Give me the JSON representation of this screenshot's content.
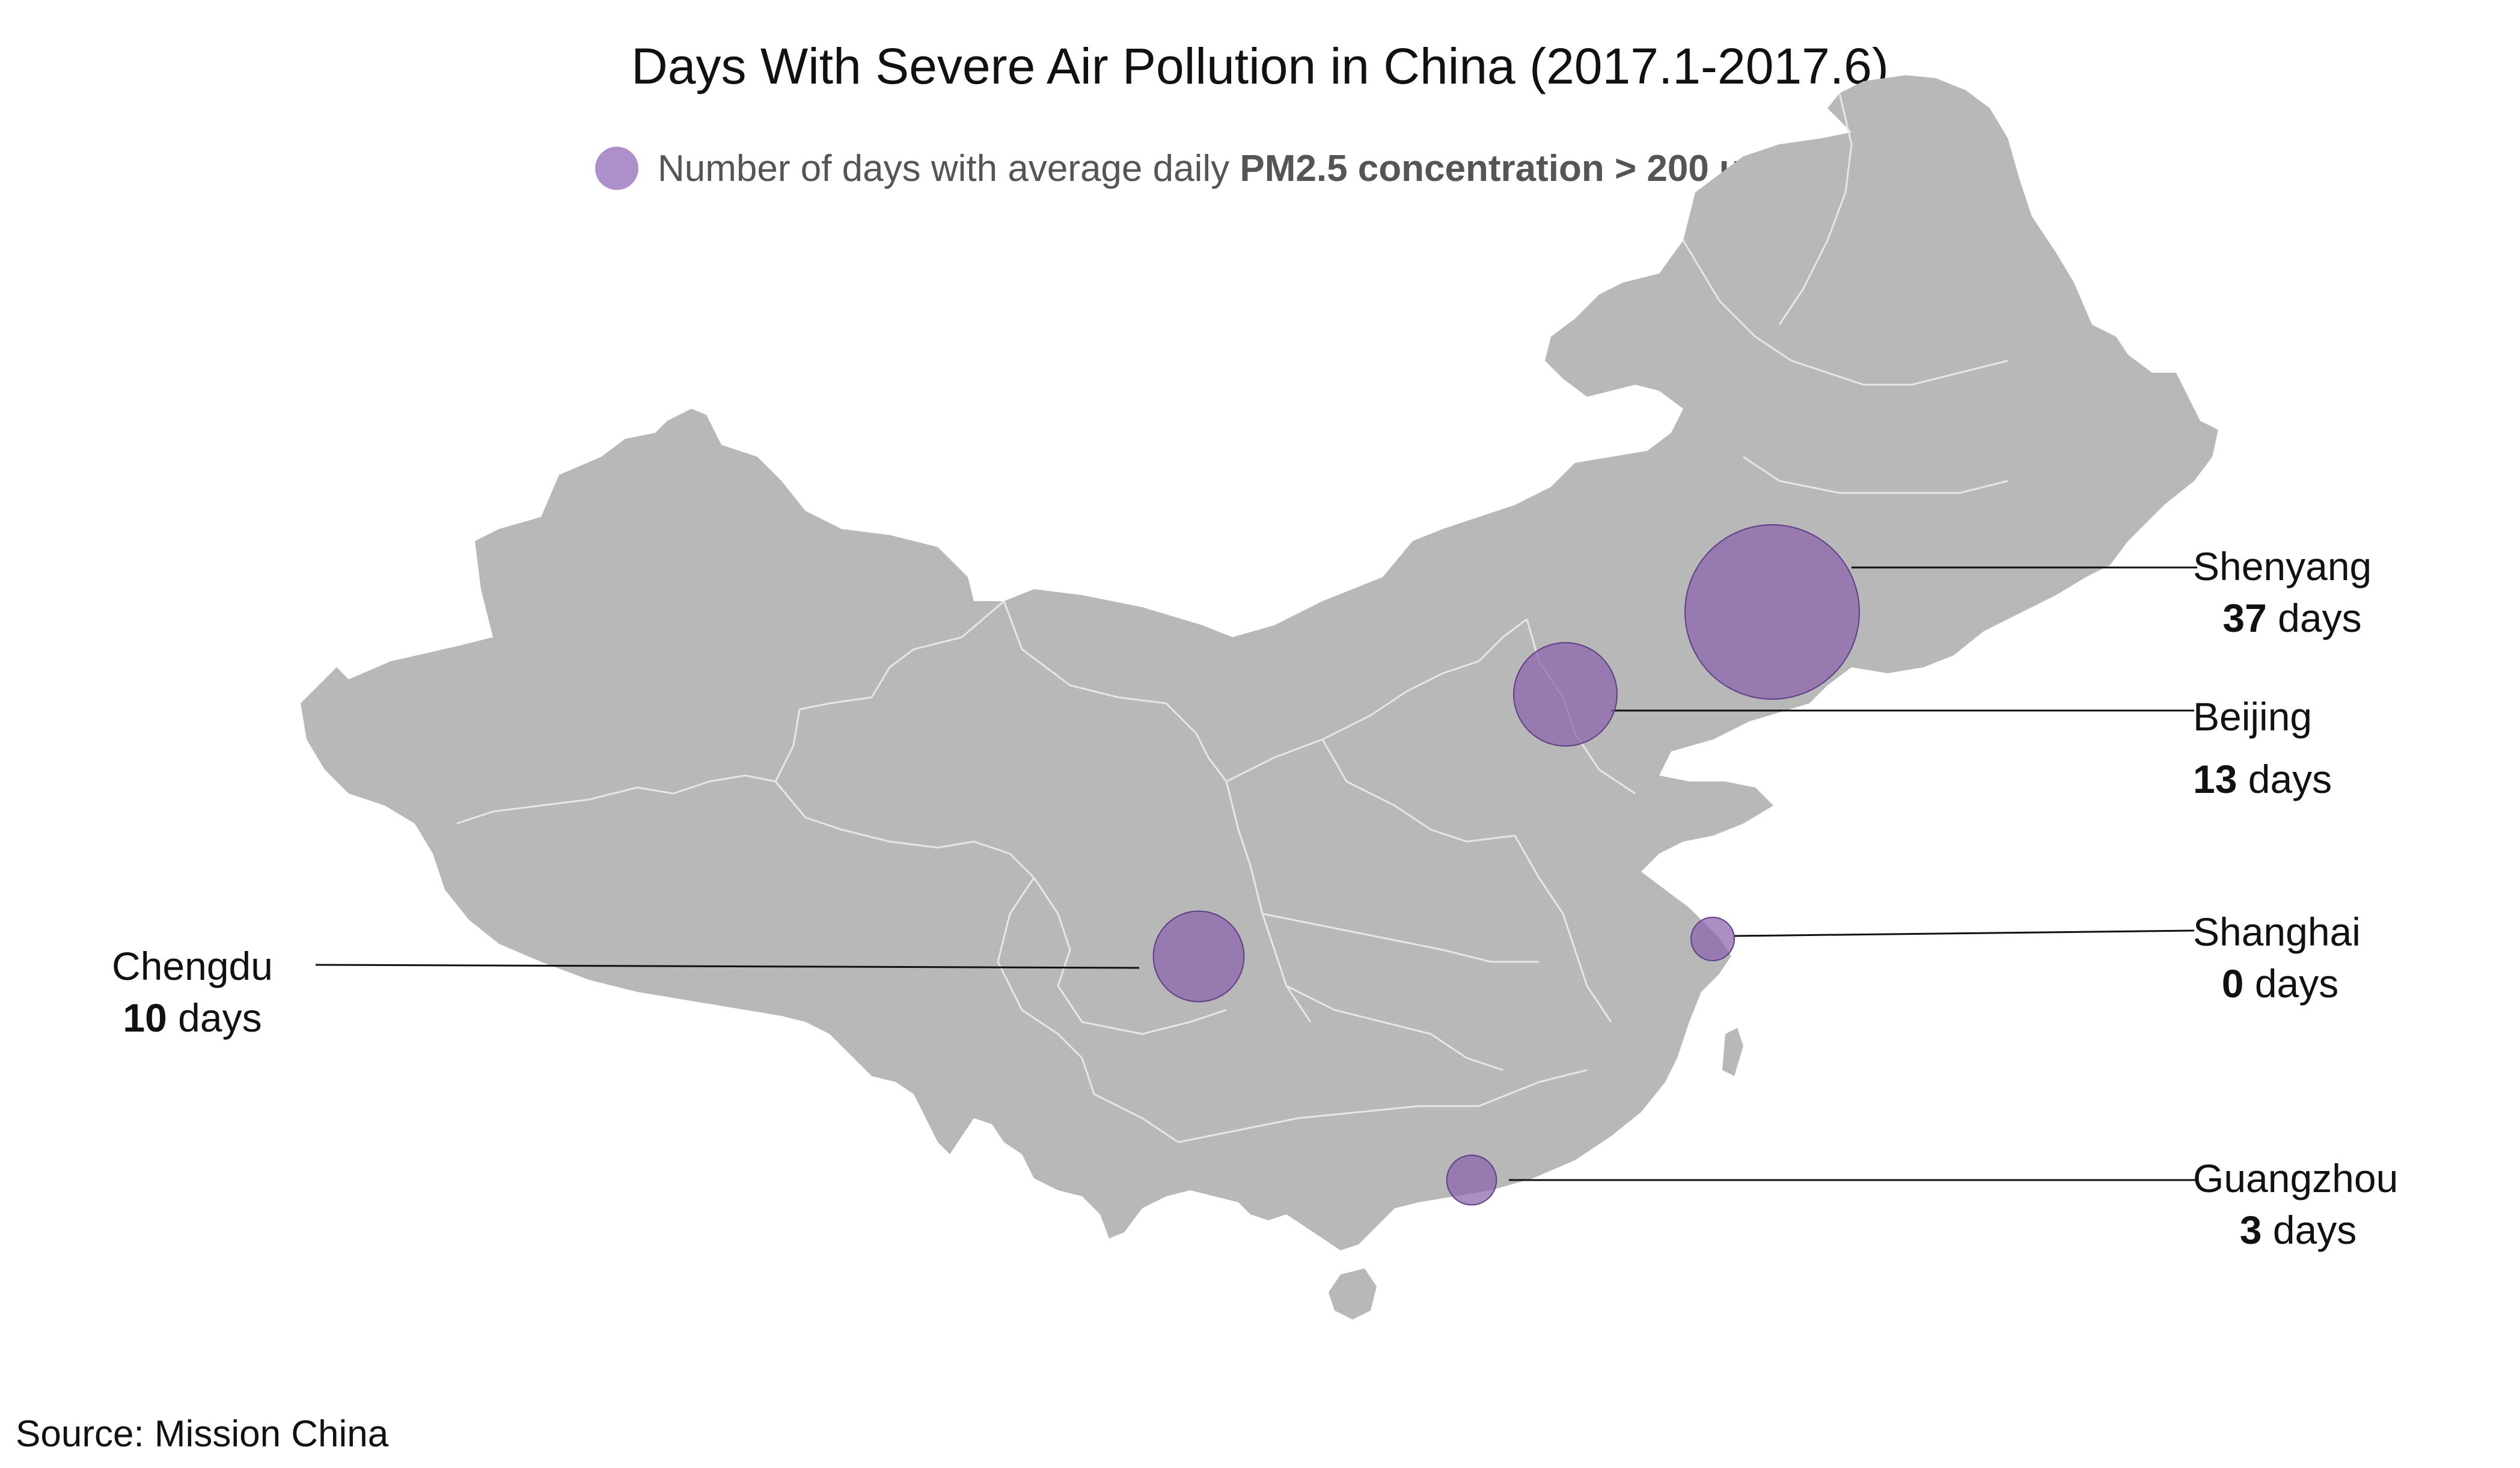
{
  "title": "Days With Severe Air Pollution in China (2017.1-2017.6)",
  "legend": {
    "text_prefix": "Number of days with average daily ",
    "text_bold": "PM2.5 concentration > 200 ug/m3",
    "marker_color": "#ad8fc9"
  },
  "colors": {
    "land": "#b8b8b8",
    "province_border": "#e6e6e6",
    "bubble_fill": "#8a62ad",
    "bubble_stroke": "#5e3f85",
    "leader_line": "#111111"
  },
  "cities": [
    {
      "id": "shenyang",
      "name": "Shenyang",
      "days": 37,
      "unit": "days"
    },
    {
      "id": "beijing",
      "name": "Beijing",
      "days": 13,
      "unit": "days"
    },
    {
      "id": "shanghai",
      "name": "Shanghai",
      "days": 0,
      "unit": "days"
    },
    {
      "id": "guangzhou",
      "name": "Guangzhou",
      "days": 3,
      "unit": "days"
    },
    {
      "id": "chengdu",
      "name": "Chengdu",
      "days": 10,
      "unit": "days"
    }
  ],
  "source": "Source: Mission China"
}
